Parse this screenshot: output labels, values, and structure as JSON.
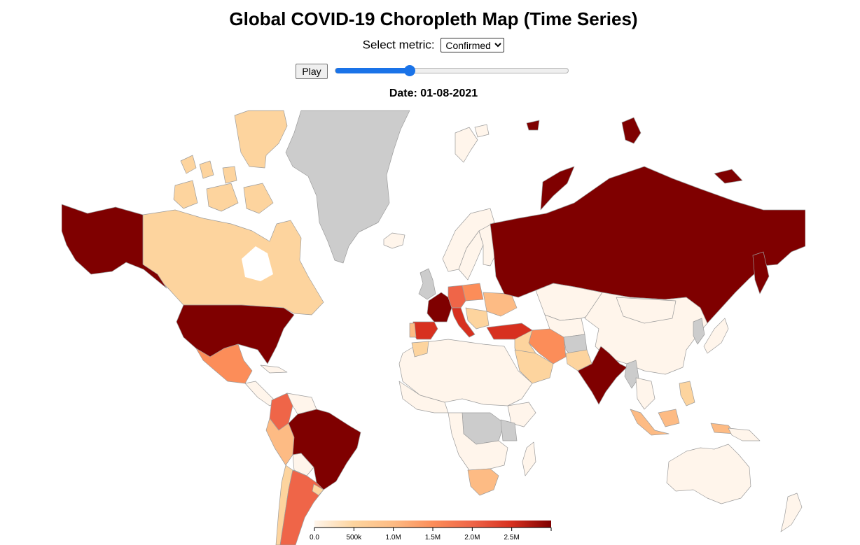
{
  "title": "Global COVID-19 Choropleth Map (Time Series)",
  "metric": {
    "label": "Select metric:",
    "selected": "Confirmed"
  },
  "play_label": "Play",
  "slider": {
    "value": 0.32
  },
  "date_label": "Date: 01-08-2021",
  "colors": {
    "no_data": "#cccccc",
    "border": "#9c9c9c",
    "slider_accent": "#1a73e8"
  },
  "legend": {
    "domain_max": 3000000,
    "ticks": [
      {
        "value": 0,
        "label": "0.0"
      },
      {
        "value": 500000,
        "label": "500k"
      },
      {
        "value": 1000000,
        "label": "1.0M"
      },
      {
        "value": 1500000,
        "label": "1.5M"
      },
      {
        "value": 2000000,
        "label": "2.0M"
      },
      {
        "value": 2500000,
        "label": "2.5M"
      }
    ],
    "color_scale": [
      "#fff5eb",
      "#fdd49e",
      "#fdbb84",
      "#fc8d59",
      "#ef6548",
      "#d7301f",
      "#7f0000"
    ]
  }
}
